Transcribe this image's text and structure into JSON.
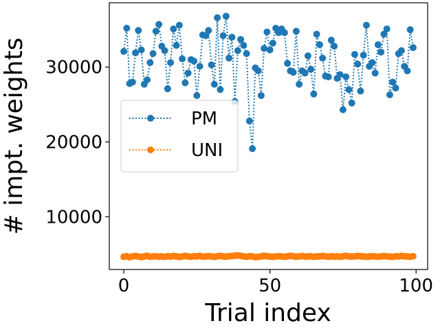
{
  "chart_data": {
    "type": "line",
    "xlabel": "Trial index",
    "ylabel": "# impt. weights",
    "xlim": [
      -4.95,
      103.95
    ],
    "ylim": [
      2950,
      38600
    ],
    "xticks": [
      0,
      50,
      100
    ],
    "yticks": [
      10000,
      20000,
      30000
    ],
    "xtick_labels": [
      "0",
      "50",
      "100"
    ],
    "ytick_labels": [
      "10000",
      "20000",
      "30000"
    ],
    "grid": false,
    "legend_position": "center-left",
    "series": [
      {
        "name": "PM",
        "color": "#1f77b4",
        "line_style": "dotted",
        "marker": "circle",
        "x": [
          0,
          1,
          2,
          3,
          4,
          5,
          6,
          7,
          8,
          9,
          10,
          11,
          12,
          13,
          14,
          15,
          16,
          17,
          18,
          19,
          20,
          21,
          22,
          23,
          24,
          25,
          26,
          27,
          28,
          29,
          30,
          31,
          32,
          33,
          34,
          35,
          36,
          37,
          38,
          39,
          40,
          41,
          42,
          43,
          44,
          45,
          46,
          47,
          48,
          49,
          50,
          51,
          52,
          53,
          54,
          55,
          56,
          57,
          58,
          59,
          60,
          61,
          62,
          63,
          64,
          65,
          66,
          67,
          68,
          69,
          70,
          71,
          72,
          73,
          74,
          75,
          76,
          77,
          78,
          79,
          80,
          81,
          82,
          83,
          84,
          85,
          86,
          87,
          88,
          89,
          90,
          91,
          92,
          93,
          94,
          95,
          96,
          97,
          98,
          99
        ],
        "y": [
          32100,
          35200,
          27800,
          28000,
          31900,
          34900,
          32300,
          27700,
          28300,
          30600,
          31800,
          34800,
          35700,
          32800,
          32200,
          27100,
          30600,
          35100,
          32900,
          35600,
          31100,
          27900,
          29200,
          31000,
          30800,
          26200,
          30100,
          34300,
          34200,
          34900,
          30300,
          27700,
          36600,
          27000,
          34200,
          36800,
          31200,
          34000,
          25400,
          32200,
          33700,
          32900,
          31800,
          22800,
          19100,
          29900,
          29500,
          26200,
          32500,
          34700,
          32300,
          33200,
          35200,
          34600,
          35100,
          34600,
          30500,
          29500,
          29300,
          34800,
          27700,
          29500,
          29200,
          31500,
          29700,
          26400,
          34400,
          33000,
          31200,
          28800,
          28700,
          33600,
          32800,
          28500,
          29000,
          24300,
          28700,
          27000,
          25200,
          31700,
          30400,
          26800,
          31600,
          35600,
          30100,
          30600,
          29200,
          33000,
          32000,
          34400,
          35100,
          26300,
          28000,
          27200,
          31800,
          32200,
          30100,
          29500,
          35000,
          32600
        ]
      },
      {
        "name": "UNI",
        "color": "#ff7f0e",
        "line_style": "dotted",
        "marker": "circle",
        "x": [
          0,
          1,
          2,
          3,
          4,
          5,
          6,
          7,
          8,
          9,
          10,
          11,
          12,
          13,
          14,
          15,
          16,
          17,
          18,
          19,
          20,
          21,
          22,
          23,
          24,
          25,
          26,
          27,
          28,
          29,
          30,
          31,
          32,
          33,
          34,
          35,
          36,
          37,
          38,
          39,
          40,
          41,
          42,
          43,
          44,
          45,
          46,
          47,
          48,
          49,
          50,
          51,
          52,
          53,
          54,
          55,
          56,
          57,
          58,
          59,
          60,
          61,
          62,
          63,
          64,
          65,
          66,
          67,
          68,
          69,
          70,
          71,
          72,
          73,
          74,
          75,
          76,
          77,
          78,
          79,
          80,
          81,
          82,
          83,
          84,
          85,
          86,
          87,
          88,
          89,
          90,
          91,
          92,
          93,
          94,
          95,
          96,
          97,
          98,
          99
        ],
        "y": [
          4650,
          4720,
          4600,
          4700,
          4750,
          4680,
          4620,
          4700,
          4780,
          4650,
          4700,
          4720,
          4660,
          4700,
          4640,
          4720,
          4680,
          4750,
          4700,
          4630,
          4700,
          4760,
          4690,
          4650,
          4720,
          4700,
          4780,
          4660,
          4700,
          4730,
          4690,
          4640,
          4710,
          4760,
          4700,
          4680,
          4720,
          4750,
          4800,
          4830,
          4780,
          4700,
          4650,
          4720,
          4690,
          4600,
          4640,
          4700,
          4780,
          4720,
          4680,
          4650,
          4700,
          4720,
          4690,
          4640,
          4700,
          4780,
          4720,
          4660,
          4700,
          4750,
          4680,
          4700,
          4720,
          4640,
          4690,
          4700,
          4760,
          4700,
          4660,
          4720,
          4680,
          4700,
          4650,
          4720,
          4780,
          4700,
          4690,
          4700,
          4760,
          4720,
          4700,
          4650,
          4680,
          4720,
          4700,
          4660,
          4700,
          4750,
          4700,
          4680,
          4640,
          4720,
          4700,
          4760,
          4690,
          4700,
          4650,
          4720
        ]
      }
    ]
  }
}
